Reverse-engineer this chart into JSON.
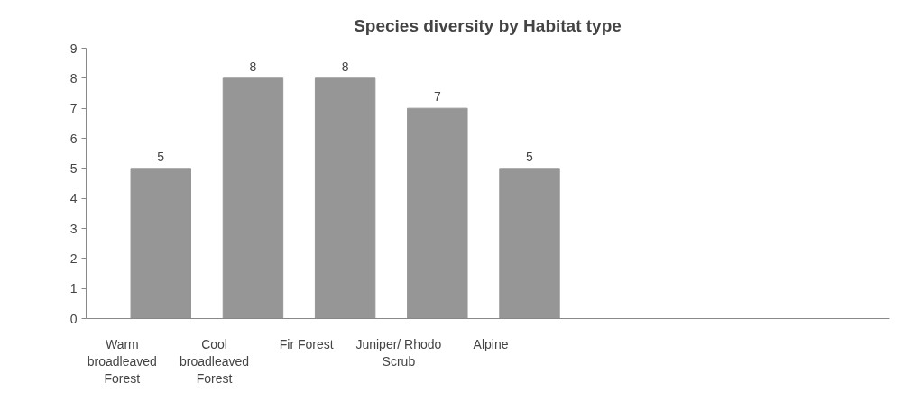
{
  "chart_data": {
    "type": "bar",
    "title": "Species diversity by Habitat type",
    "categories": [
      "Warm broadleaved Forest",
      "Cool broadleaved Forest",
      "Fir Forest",
      "Juniper/ Rhodo Scrub",
      "Alpine"
    ],
    "values": [
      5,
      8,
      8,
      7,
      5
    ],
    "color": "#969696",
    "ylim": [
      0,
      9
    ],
    "yticks": [
      0,
      1,
      2,
      3,
      4,
      5,
      6,
      7,
      8,
      9
    ],
    "grid": false,
    "data_labels": true
  }
}
